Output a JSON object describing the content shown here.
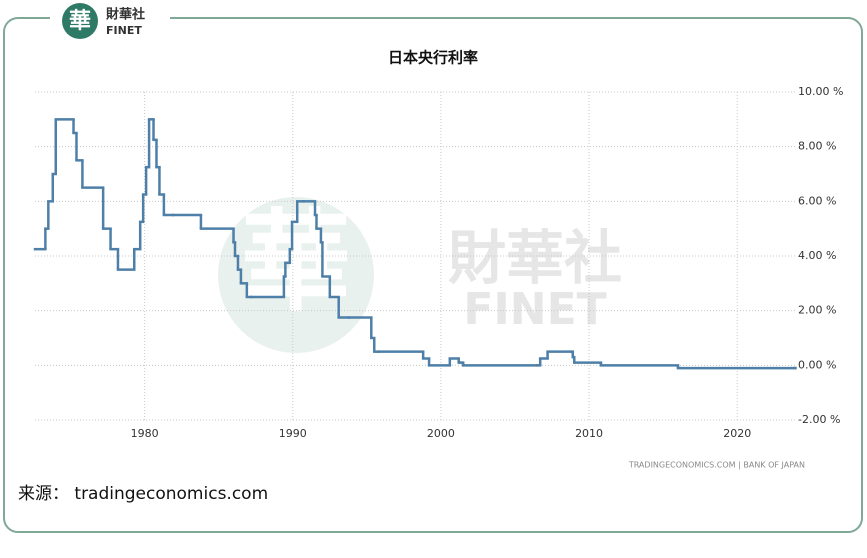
{
  "logo": {
    "name": "財華社",
    "latin": "FINET",
    "mark": "華"
  },
  "chart_data": {
    "type": "step-line",
    "title": "日本央行利率",
    "credit": "TRADINGECONOMICS.COM | BANK OF JAPAN",
    "source": "来源： tradingeconomics.com",
    "xlim": [
      1972.6,
      2023.9
    ],
    "xticks": [
      1980,
      1990,
      2000,
      2010,
      2020
    ],
    "ylim": [
      -2,
      10
    ],
    "yticks": [
      {
        "value": 10,
        "label": "10.00 %"
      },
      {
        "value": 8,
        "label": "8.00 %"
      },
      {
        "value": 6,
        "label": "6.00 %"
      },
      {
        "value": 4,
        "label": "4.00 %"
      },
      {
        "value": 2,
        "label": "2.00 %"
      },
      {
        "value": 0,
        "label": "0.00 %"
      },
      {
        "value": -2,
        "label": "-2.00 %"
      }
    ],
    "grid": true,
    "series": [
      {
        "color": "#4e7fa8",
        "x": [
          1972.6,
          1973.3,
          1973.5,
          1973.8,
          1974.0,
          1975.2,
          1975.4,
          1975.8,
          1977.2,
          1977.7,
          1978.2,
          1979.3,
          1979.7,
          1979.9,
          1980.1,
          1980.3,
          1980.6,
          1980.8,
          1981.0,
          1981.3,
          1981.9,
          1983.8,
          1986.0,
          1986.1,
          1986.3,
          1986.5,
          1986.9,
          1987.2,
          1989.4,
          1989.5,
          1989.8,
          1989.95,
          1990.3,
          1990.7,
          1991.5,
          1991.6,
          1991.9,
          1992.0,
          1992.5,
          1993.1,
          1993.8,
          1995.3,
          1995.5,
          1995.8,
          1998.8,
          1999.2,
          2000.6,
          2001.2,
          2001.3,
          2001.5,
          2006.5,
          2006.7,
          2007.2,
          2008.8,
          2008.9,
          2009.0,
          2010.8,
          2016.0,
          2023.9
        ],
        "values": [
          4.25,
          5,
          6,
          7,
          9,
          8.5,
          7.5,
          6.5,
          5,
          4.25,
          3.5,
          4.25,
          5.25,
          6.25,
          7.25,
          9,
          8.25,
          7.25,
          6.25,
          5.5,
          5.5,
          5,
          4.5,
          4,
          3.5,
          3,
          2.5,
          2.5,
          3.25,
          3.75,
          4.25,
          5.25,
          6,
          6,
          5.5,
          5,
          4.5,
          3.25,
          2.5,
          1.75,
          1.75,
          1,
          0.5,
          0.5,
          0.25,
          0,
          0.25,
          0.1,
          0.1,
          0,
          0,
          0.25,
          0.5,
          0.5,
          0.3,
          0.1,
          0,
          -0.1,
          -0.1
        ]
      }
    ]
  }
}
